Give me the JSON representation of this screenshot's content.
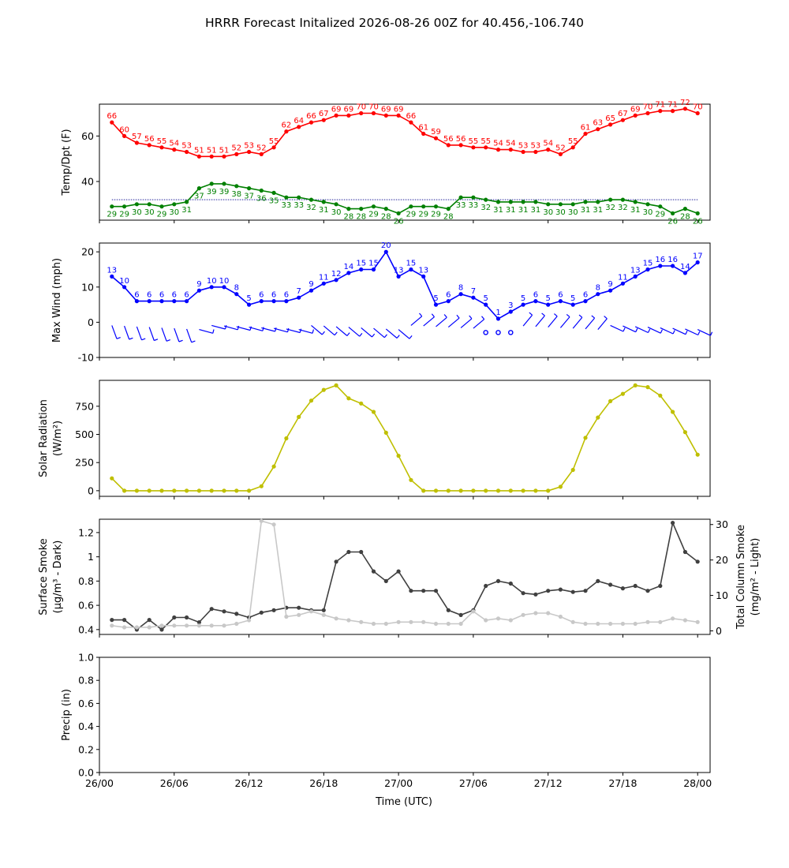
{
  "title": "HRRR Forecast Initalized 2026-08-26 00Z for 40.456,-106.740",
  "x_axis": {
    "label": "Time (UTC)",
    "range_hours": [
      0,
      49
    ],
    "ticks": [
      {
        "hour": 0,
        "label": "26/00"
      },
      {
        "hour": 6,
        "label": "26/06"
      },
      {
        "hour": 12,
        "label": "26/12"
      },
      {
        "hour": 18,
        "label": "26/18"
      },
      {
        "hour": 24,
        "label": "27/00"
      },
      {
        "hour": 30,
        "label": "27/06"
      },
      {
        "hour": 36,
        "label": "27/12"
      },
      {
        "hour": 42,
        "label": "27/18"
      },
      {
        "hour": 48,
        "label": "28/00"
      }
    ]
  },
  "chart_data": [
    {
      "type": "line",
      "ylabel": "Temp/Dpt (F)",
      "ylim": [
        23,
        74
      ],
      "yticks": [
        40,
        60
      ],
      "x_hours": [
        1,
        2,
        3,
        4,
        5,
        6,
        7,
        8,
        9,
        10,
        11,
        12,
        13,
        14,
        15,
        16,
        17,
        18,
        19,
        20,
        21,
        22,
        23,
        24,
        25,
        26,
        27,
        28,
        29,
        30,
        31,
        32,
        33,
        34,
        35,
        36,
        37,
        38,
        39,
        40,
        41,
        42,
        43,
        44,
        45,
        46,
        47,
        48
      ],
      "series": [
        {
          "color": "#ff0000",
          "labels": true,
          "values": [
            66,
            60,
            57,
            56,
            55,
            54,
            53,
            51,
            51,
            51,
            52,
            53,
            52,
            55,
            62,
            64,
            66,
            67,
            69,
            69,
            70,
            70,
            69,
            69,
            66,
            61,
            59,
            56,
            56,
            55,
            55,
            54,
            54,
            53,
            53,
            54,
            52,
            55,
            61,
            63,
            65,
            67,
            69,
            70,
            71,
            71,
            72,
            70
          ]
        },
        {
          "color": "#008000",
          "labels": true,
          "values": [
            29,
            29,
            30,
            30,
            29,
            30,
            31,
            37,
            39,
            39,
            38,
            37,
            36,
            35,
            33,
            33,
            32,
            31,
            30,
            28,
            28,
            29,
            28,
            26,
            29,
            29,
            29,
            28,
            33,
            33,
            32,
            31,
            31,
            31,
            31,
            30,
            30,
            30,
            31,
            31,
            32,
            32,
            31,
            30,
            29,
            26,
            28,
            26
          ]
        }
      ],
      "reference_line": {
        "value": 32,
        "color": "#00008b",
        "style": "dotted"
      }
    },
    {
      "type": "line",
      "ylabel": "Max Wind (mph)",
      "ylim": [
        -10,
        22.5
      ],
      "yticks": [
        -10,
        0,
        10,
        20
      ],
      "x_hours": [
        1,
        2,
        3,
        4,
        5,
        6,
        7,
        8,
        9,
        10,
        11,
        12,
        13,
        14,
        15,
        16,
        17,
        18,
        19,
        20,
        21,
        22,
        23,
        24,
        25,
        26,
        27,
        28,
        29,
        30,
        31,
        32,
        33,
        34,
        35,
        36,
        37,
        38,
        39,
        40,
        41,
        42,
        43,
        44,
        45,
        46,
        47,
        48
      ],
      "series": [
        {
          "color": "#0000ff",
          "labels": true,
          "values": [
            13,
            10,
            6,
            6,
            6,
            6,
            6,
            9,
            10,
            10,
            8,
            5,
            6,
            6,
            6,
            7,
            9,
            11,
            12,
            14,
            15,
            15,
            20,
            13,
            15,
            13,
            5,
            6,
            8,
            7,
            5,
            1,
            3,
            5,
            6,
            5,
            6,
            5,
            6,
            8,
            9,
            11,
            13,
            15,
            16,
            16,
            14,
            17
          ]
        }
      ],
      "wind_barbs": {
        "row_value": 0,
        "color": "#0000ff",
        "calm_hours": [
          31,
          32,
          33
        ]
      }
    },
    {
      "type": "line",
      "ylabel": "Solar Radiation",
      "ylabel_unit": "(W/m²)",
      "ylim": [
        -50,
        980
      ],
      "yticks": [
        0,
        250,
        500,
        750
      ],
      "x_hours": [
        1,
        2,
        3,
        4,
        5,
        6,
        7,
        8,
        9,
        10,
        11,
        12,
        13,
        14,
        15,
        16,
        17,
        18,
        19,
        20,
        21,
        22,
        23,
        24,
        25,
        26,
        27,
        28,
        29,
        30,
        31,
        32,
        33,
        34,
        35,
        36,
        37,
        38,
        39,
        40,
        41,
        42,
        43,
        44,
        45,
        46,
        47,
        48
      ],
      "series": [
        {
          "color": "#bfbf00",
          "labels": false,
          "values": [
            110,
            0,
            0,
            0,
            0,
            0,
            0,
            0,
            0,
            0,
            0,
            0,
            40,
            215,
            465,
            655,
            800,
            895,
            935,
            820,
            775,
            700,
            515,
            310,
            95,
            0,
            0,
            0,
            0,
            0,
            0,
            0,
            0,
            0,
            0,
            0,
            35,
            185,
            470,
            650,
            795,
            860,
            935,
            920,
            845,
            700,
            520,
            320
          ]
        }
      ]
    },
    {
      "type": "line",
      "ylabel": "Surface Smoke",
      "ylabel_unit": "(μg/m³ - Dark)",
      "ylabel_right": "Total Column Smoke",
      "ylabel_right_unit": "(mg/m² - Light)",
      "ylim": [
        0.36,
        1.31
      ],
      "yticks": [
        0.4,
        0.6,
        0.8,
        1.0,
        1.2
      ],
      "ylim_right": [
        -1,
        31.5
      ],
      "yticks_right": [
        0,
        10,
        20,
        30
      ],
      "x_hours": [
        1,
        2,
        3,
        4,
        5,
        6,
        7,
        8,
        9,
        10,
        11,
        12,
        13,
        14,
        15,
        16,
        17,
        18,
        19,
        20,
        21,
        22,
        23,
        24,
        25,
        26,
        27,
        28,
        29,
        30,
        31,
        32,
        33,
        34,
        35,
        36,
        37,
        38,
        39,
        40,
        41,
        42,
        43,
        44,
        45,
        46,
        47,
        48
      ],
      "series": [
        {
          "color": "#404040",
          "axis": "left",
          "values": [
            0.48,
            0.48,
            0.4,
            0.48,
            0.4,
            0.5,
            0.5,
            0.46,
            0.57,
            0.55,
            0.53,
            0.5,
            0.54,
            0.56,
            0.58,
            0.58,
            0.56,
            0.56,
            0.96,
            1.04,
            1.04,
            0.88,
            0.8,
            0.88,
            0.72,
            0.72,
            0.72,
            0.56,
            0.52,
            0.56,
            0.76,
            0.8,
            0.78,
            0.7,
            0.69,
            0.72,
            0.73,
            0.71,
            0.72,
            0.8,
            0.77,
            0.74,
            0.76,
            0.72,
            0.76,
            1.28,
            1.04,
            0.96
          ]
        },
        {
          "color": "#c8c8c8",
          "axis": "right",
          "values": [
            1.5,
            1.0,
            1.0,
            1.0,
            1.5,
            1.5,
            1.5,
            1.5,
            1.5,
            1.5,
            2.0,
            3.0,
            31.0,
            30.0,
            4.0,
            4.5,
            5.5,
            4.5,
            3.5,
            3.0,
            2.5,
            2.0,
            2.0,
            2.5,
            2.5,
            2.5,
            2.0,
            2.0,
            2.0,
            5.5,
            3.0,
            3.5,
            3.0,
            4.5,
            5.0,
            5.0,
            4.0,
            2.5,
            2.0,
            2.0,
            2.0,
            2.0,
            2.0,
            2.5,
            2.5,
            3.5,
            3.0,
            2.5
          ]
        }
      ]
    },
    {
      "type": "line",
      "ylabel": "Precip (in)",
      "ylim": [
        0,
        1
      ],
      "yticks": [
        0.0,
        0.2,
        0.4,
        0.6,
        0.8,
        1.0
      ],
      "yticks_text": [
        "0.0",
        "0.2",
        "0.4",
        "0.6",
        "0.8",
        "1.0"
      ],
      "series": []
    }
  ]
}
